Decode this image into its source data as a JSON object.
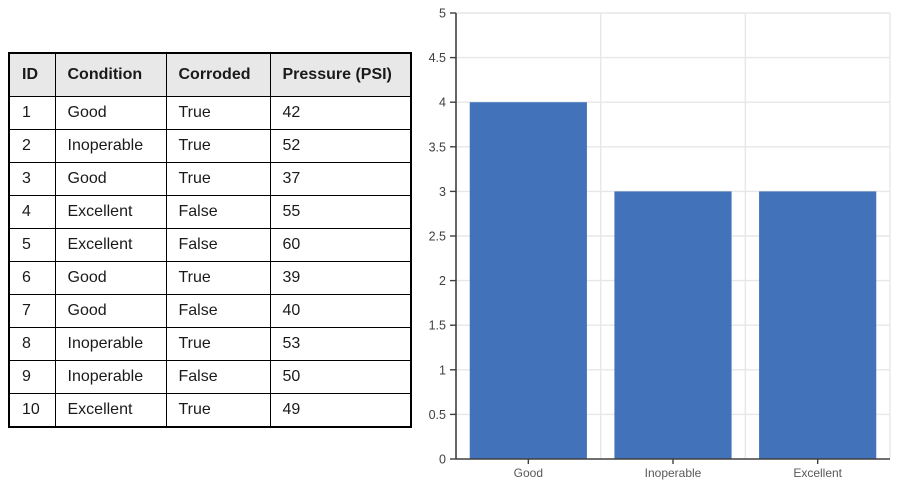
{
  "table": {
    "columns": [
      "ID",
      "Condition",
      "Corroded",
      "Pressure (PSI)"
    ],
    "rows": [
      [
        "1",
        "Good",
        "True",
        "42"
      ],
      [
        "2",
        "Inoperable",
        "True",
        "52"
      ],
      [
        "3",
        "Good",
        "True",
        "37"
      ],
      [
        "4",
        "Excellent",
        "False",
        "55"
      ],
      [
        "5",
        "Excellent",
        "False",
        "60"
      ],
      [
        "6",
        "Good",
        "True",
        "39"
      ],
      [
        "7",
        "Good",
        "False",
        "40"
      ],
      [
        "8",
        "Inoperable",
        "True",
        "53"
      ],
      [
        "9",
        "Inoperable",
        "False",
        "50"
      ],
      [
        "10",
        "Excellent",
        "True",
        "49"
      ]
    ]
  },
  "chart_data": {
    "type": "bar",
    "title": "",
    "xlabel": "",
    "ylabel": "",
    "categories": [
      "Good",
      "Inoperable",
      "Excellent"
    ],
    "values": [
      4,
      3,
      3
    ],
    "ylim": [
      0,
      5
    ],
    "ytick_step": 0.5,
    "yticks": [
      0,
      0.5,
      1,
      1.5,
      2,
      2.5,
      3,
      3.5,
      4,
      4.5,
      5
    ],
    "grid": true,
    "legend": false,
    "bar_color": "#4273BA"
  },
  "colors": {
    "background": "#FFFFFF",
    "bar": "#4273BA",
    "gridline": "#E7E7E7",
    "axis": "#404040",
    "axis_tick_label": "#3F3F3F",
    "category_label": "#595959",
    "table_border": "#000000",
    "table_header_bg": "#E8E8E8",
    "table_text": "#1A1A1A"
  }
}
